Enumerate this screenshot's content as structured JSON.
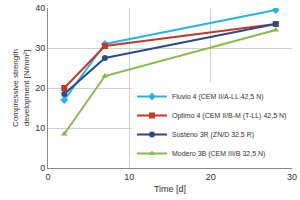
{
  "chart_data": {
    "type": "line",
    "x_label": "Time [d]",
    "y_label": "Compressive strength\ndevelopment [N/mm²]",
    "xlim": [
      0,
      30
    ],
    "xticks": [
      0,
      10,
      20,
      30
    ],
    "ylim": [
      0,
      40
    ],
    "yticks": [
      0,
      10,
      20,
      30,
      40
    ],
    "grid": true,
    "legend": "lower right",
    "series": [
      {
        "name": "Fluvio 4 (CEM II/A-LL 42,5 N)",
        "color": "#29b4e6",
        "marker": "diamond",
        "x": [
          2,
          7,
          28
        ],
        "values": [
          17,
          31,
          39.5
        ]
      },
      {
        "name": "Optimo 4 (CEM II/B-M (T-LL) 42,5 N)",
        "color": "#c0392b",
        "marker": "square",
        "x": [
          2,
          7,
          28
        ],
        "values": [
          20,
          30.5,
          36
        ]
      },
      {
        "name": "Susteno 3R (ZN/D 32,5 R)",
        "color": "#2e4a8a",
        "marker": "circle",
        "x": [
          2,
          7,
          28
        ],
        "values": [
          18.5,
          27.5,
          36
        ]
      },
      {
        "name": "Modero 3B (CEM III/B 32,5 N)",
        "color": "#8cb84a",
        "marker": "triangle-up",
        "x": [
          2,
          7,
          28
        ],
        "values": [
          8.5,
          23,
          34.5
        ]
      }
    ]
  }
}
